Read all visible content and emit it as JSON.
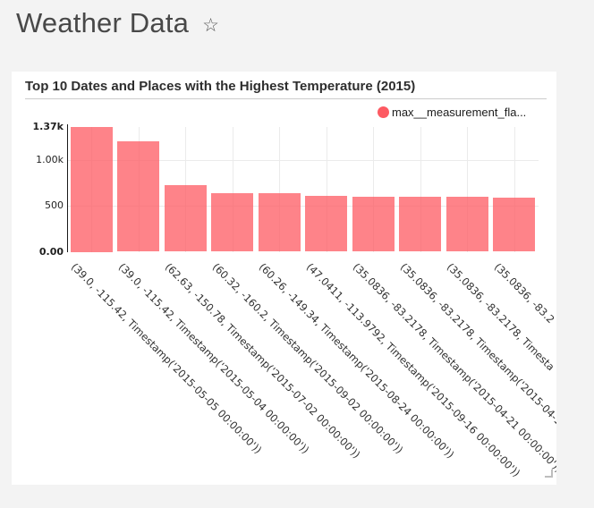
{
  "page": {
    "title": "Weather Data",
    "favorite_icon": "☆"
  },
  "card": {
    "title": "Top 10 Dates and Places with the Highest Temperature (2015)",
    "legend": {
      "label": "max__measurement_fla...",
      "color": "#fd5a62"
    }
  },
  "chart_data": {
    "type": "bar",
    "title": "Top 10 Dates and Places with the Highest Temperature (2015)",
    "legend_entries": [
      "max__measurement_fla..."
    ],
    "legend_position": "top-right",
    "grid": true,
    "xlabel": "",
    "ylabel": "",
    "ylim": [
      0,
      1370
    ],
    "categories": [
      "(39.0, -115.42, Timestamp('2015-05-05 00:00:00'))",
      "(39.0, -115.42, Timestamp('2015-05-04 00:00:00'))",
      "(62.63, -150.78, Timestamp('2015-07-02 00:00:00'))",
      "(60.32, -160.2, Timestamp('2015-09-02 00:00:00'))",
      "(60.26, -149.34, Timestamp('2015-08-24 00:00:00'))",
      "(47.0411, -113.9792, Timestamp('2015-09-16 00:00:00'))",
      "(35.0836, -83.2178, Timestamp('2015-04-21 00:00:00'))",
      "(35.0836, -83.2178, Timestamp('2015-04-1",
      "(35.0836, -83.2178, Timesta",
      "(35.0836, -83.2"
    ],
    "series": [
      {
        "name": "max__measurement_fla...",
        "values": [
          1370,
          1210,
          730,
          645,
          640,
          608,
          604,
          602,
          600,
          594
        ]
      }
    ],
    "yticks": [
      {
        "label": "0.00",
        "value": 0,
        "bold": true
      },
      {
        "label": "500",
        "value": 500,
        "bold": false
      },
      {
        "label": "1.00k",
        "value": 1000,
        "bold": false
      },
      {
        "label": "1.37k",
        "value": 1370,
        "bold": true
      }
    ],
    "bar_color": "#fd5a62",
    "bar_opacity": 0.75
  }
}
